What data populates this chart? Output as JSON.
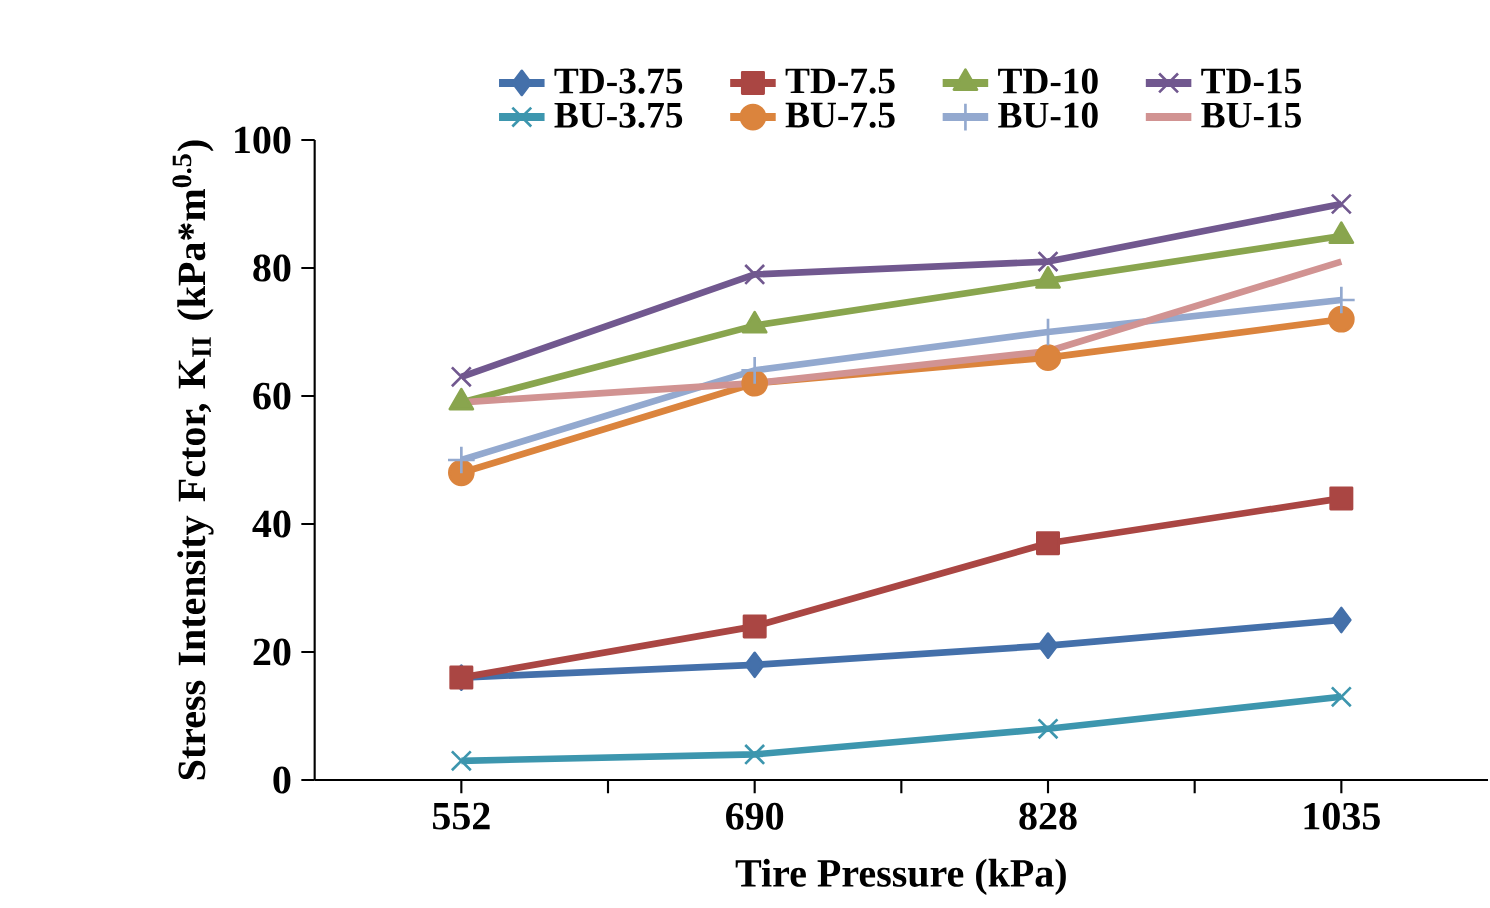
{
  "chart_data": {
    "type": "line",
    "xlabel": "Tire Pressure (kPa)",
    "ylabel": "Stress Intensity Fctor, K$_{II}$ (kPa*m$^{0.5}$)",
    "categories": [
      "552",
      "690",
      "828",
      "1035"
    ],
    "ylim": [
      0,
      100
    ],
    "yticks": [
      0,
      20,
      40,
      60,
      80,
      100
    ],
    "grid": false,
    "legend": "top",
    "series": [
      {
        "name": "TD-3.75",
        "color": "#4470aa",
        "marker": "diamond",
        "values": [
          16,
          18,
          21,
          25
        ]
      },
      {
        "name": "TD-7.5",
        "color": "#aa4643",
        "marker": "square",
        "values": [
          16,
          24,
          37,
          44
        ]
      },
      {
        "name": "TD-10",
        "color": "#89a54e",
        "marker": "triangle",
        "values": [
          59,
          71,
          78,
          85
        ]
      },
      {
        "name": "TD-15",
        "color": "#71588f",
        "marker": "cross",
        "values": [
          63,
          79,
          81,
          90
        ]
      },
      {
        "name": "BU-3.75",
        "color": "#3d96ae",
        "marker": "cross",
        "values": [
          3,
          4,
          8,
          13
        ]
      },
      {
        "name": "BU-7.5",
        "color": "#db843d",
        "marker": "circle",
        "values": [
          48,
          62,
          66,
          72
        ]
      },
      {
        "name": "BU-10",
        "color": "#93a9cf",
        "marker": "plus",
        "values": [
          50,
          64,
          70,
          75
        ]
      },
      {
        "name": "BU-15",
        "color": "#d19392",
        "marker": "none",
        "values": [
          59,
          62,
          67,
          81
        ]
      }
    ]
  }
}
